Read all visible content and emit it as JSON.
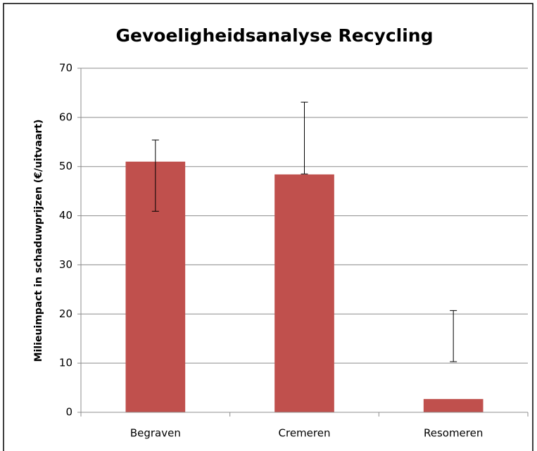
{
  "chart_data": {
    "type": "bar",
    "title": "Gevoeligheidsanalyse  Recycling",
    "y_label": "Milieuimpact  in schaduwprijzen  (€/uitvaart)",
    "categories": [
      "Begraven",
      "Cremeren",
      "Resomeren"
    ],
    "values": [
      51,
      48.4,
      2.7
    ],
    "error_low": [
      40.9,
      48.5,
      10.3
    ],
    "error_high": [
      55.4,
      63.1,
      20.7
    ],
    "color": "#c0504d",
    "ylim": [
      0,
      70
    ],
    "yticks": [
      0,
      10,
      20,
      30,
      40,
      50,
      60,
      70
    ],
    "grid": true
  }
}
